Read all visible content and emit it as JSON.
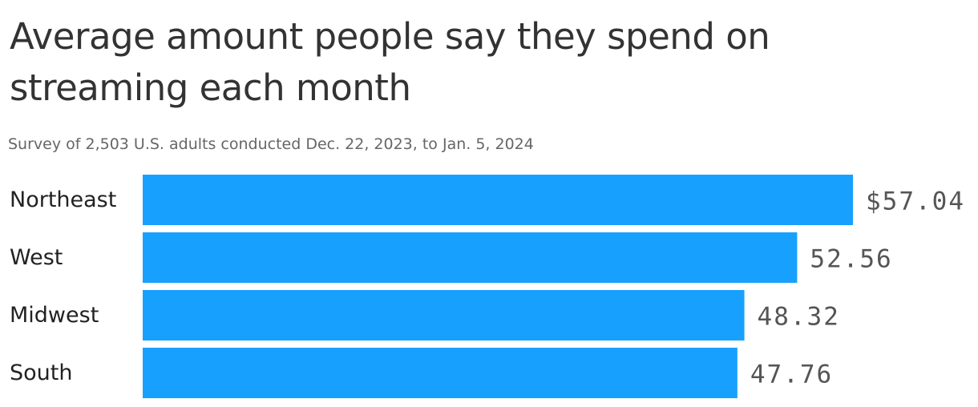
{
  "chart_data": {
    "type": "bar",
    "orientation": "horizontal",
    "title": "Average amount people say they spend on streaming each month",
    "subtitle": "Survey of 2,503 U.S. adults conducted Dec. 22, 2023, to Jan. 5, 2024",
    "categories": [
      "Northeast",
      "West",
      "Midwest",
      "South"
    ],
    "values": [
      57.04,
      52.56,
      48.32,
      47.76
    ],
    "value_labels": [
      "$57.04",
      "52.56",
      "48.32",
      "47.76"
    ],
    "xlim": [
      0,
      57.04
    ],
    "grid": false,
    "legend": "none",
    "bar_color": "#18a0ff"
  }
}
